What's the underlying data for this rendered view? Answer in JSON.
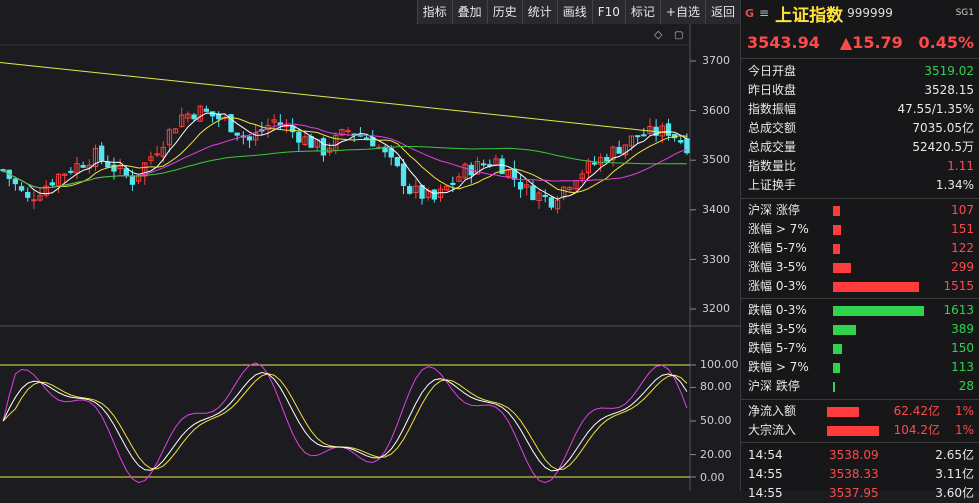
{
  "toolbar": {
    "buttons": [
      "指标",
      "叠加",
      "历史",
      "统计",
      "画线",
      "F10",
      "标记",
      "+自选",
      "返回"
    ]
  },
  "chart": {
    "price_ticks": [
      "3700",
      "3600",
      "3500",
      "3400",
      "3300",
      "3200"
    ],
    "kdj_ticks": [
      "100.00",
      "80.00",
      "50.00",
      "20.00",
      "0.00"
    ],
    "colors": {
      "up": "#ff3b3b",
      "down": "#54e6ee",
      "ma5": "#ffffff",
      "ma10": "#f2e23a",
      "ma20": "#e040e0",
      "ma60": "#3cc83c",
      "trend": "#e8e84a",
      "K": "#ffffff",
      "D": "#f2e23a",
      "J": "#e040e0"
    }
  },
  "panel": {
    "g_icon": "G",
    "menu_icon": "≡",
    "name": "上证指数",
    "code": "999999",
    "sg": "SG1",
    "price": "3543.94",
    "change": "▲15.79",
    "change_pct": "0.45%",
    "stats": [
      {
        "label": "今日开盘",
        "value": "3519.02",
        "color": "green"
      },
      {
        "label": "昨日收盘",
        "value": "3528.15",
        "color": "white"
      },
      {
        "label": "指数振幅",
        "value": "47.55/1.35%",
        "color": "white"
      },
      {
        "label": "总成交额",
        "value": "7035.05亿",
        "color": "white"
      },
      {
        "label": "总成交量",
        "value": "52420.5万",
        "color": "white"
      },
      {
        "label": "指数量比",
        "value": "1.11",
        "color": "red"
      },
      {
        "label": "上证换手",
        "value": "1.34%",
        "color": "white"
      }
    ],
    "breadth_up": [
      {
        "label": "沪深 涨停",
        "value": "107"
      },
      {
        "label": "涨幅 > 7%",
        "value": "151"
      },
      {
        "label": "涨幅 5-7%",
        "value": "122"
      },
      {
        "label": "涨幅 3-5%",
        "value": "299"
      },
      {
        "label": "涨幅 0-3%",
        "value": "1515"
      }
    ],
    "breadth_down": [
      {
        "label": "跌幅 0-3%",
        "value": "1613"
      },
      {
        "label": "跌幅 3-5%",
        "value": "389"
      },
      {
        "label": "跌幅 5-7%",
        "value": "150"
      },
      {
        "label": "跌幅 > 7%",
        "value": "113"
      },
      {
        "label": "沪深 跌停",
        "value": "28"
      }
    ],
    "flow": [
      {
        "label": "净流入额",
        "amount": "62.42亿",
        "pct": "1%"
      },
      {
        "label": "大宗流入",
        "amount": "104.2亿",
        "pct": "1%"
      }
    ],
    "ticks": [
      {
        "time": "14:54",
        "price": "3538.09",
        "vol": "2.65亿"
      },
      {
        "time": "14:55",
        "price": "3538.33",
        "vol": "3.11亿"
      },
      {
        "time": "14:55",
        "price": "3537.95",
        "vol": "3.60亿"
      }
    ]
  }
}
